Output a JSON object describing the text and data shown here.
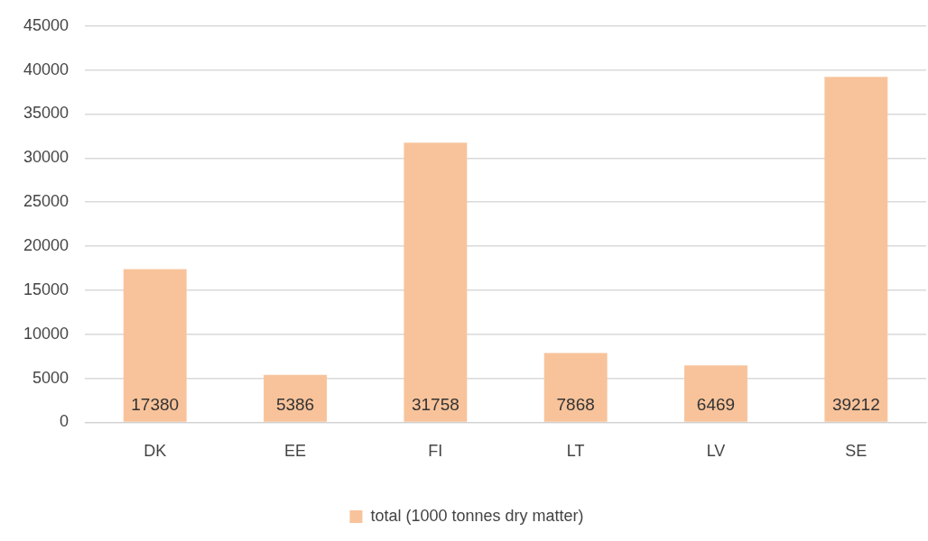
{
  "chart_data": {
    "type": "bar",
    "categories": [
      "DK",
      "EE",
      "FI",
      "LT",
      "LV",
      "SE"
    ],
    "series": [
      {
        "name": "total (1000 tonnes dry matter)",
        "color": "#f8c39b",
        "values": [
          17380,
          5386,
          31758,
          7868,
          6469,
          39212
        ]
      }
    ],
    "ylim": [
      0,
      45000
    ],
    "yticks": [
      0,
      5000,
      10000,
      15000,
      20000,
      25000,
      30000,
      35000,
      40000,
      45000
    ],
    "grid": "y",
    "legend": "bottom",
    "data_labels": true
  }
}
